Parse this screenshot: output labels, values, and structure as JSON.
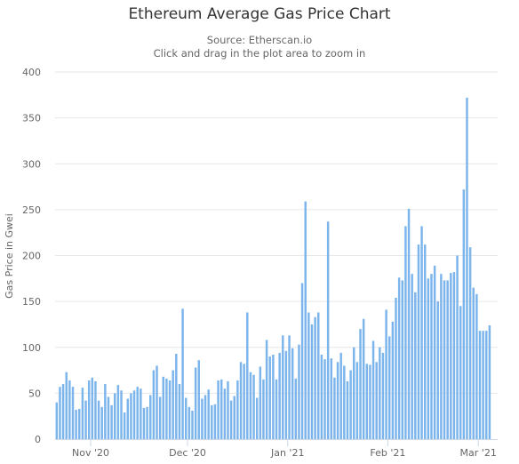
{
  "chart_data": {
    "type": "bar",
    "title": "Ethereum Average Gas Price Chart",
    "subtitle": "Source: Etherscan.io",
    "subtitle2": "Click and drag in the plot area to zoom in",
    "ylabel": "Gas Price in Gwei",
    "xlabel": "",
    "ylim": [
      0,
      400
    ],
    "yticks": [
      0,
      50,
      100,
      150,
      200,
      250,
      300,
      350,
      400
    ],
    "x_range": [
      "2020-10-21",
      "2021-03-06"
    ],
    "xticks": [
      {
        "label": "Nov '20",
        "date": "2020-11-01"
      },
      {
        "label": "Dec '20",
        "date": "2020-12-01"
      },
      {
        "label": "Jan '21",
        "date": "2021-01-01"
      },
      {
        "label": "Feb '21",
        "date": "2021-02-01"
      },
      {
        "label": "Mar '21",
        "date": "2021-03-01"
      }
    ],
    "grid": true,
    "bar_color": "#7cb5ec",
    "series": [
      {
        "start_date": "2020-10-21",
        "values": [
          40,
          57,
          60,
          73,
          64,
          57,
          32,
          33,
          56,
          42,
          64,
          67,
          63,
          42,
          35,
          60,
          46,
          37,
          50,
          59,
          53,
          29,
          44,
          50,
          53,
          57,
          55,
          34,
          35,
          48,
          75,
          80,
          46,
          68,
          66,
          64,
          75,
          93,
          60,
          142,
          45,
          35,
          31,
          78,
          86,
          44,
          48,
          54,
          37,
          38,
          64,
          65,
          55,
          63,
          42,
          47,
          64,
          84,
          82,
          138,
          73,
          70,
          45,
          79,
          65,
          108,
          90,
          92,
          65,
          94,
          113,
          96,
          113,
          99,
          66,
          103,
          170,
          259,
          138,
          125,
          133,
          138,
          92,
          87,
          237,
          88,
          67,
          84,
          94,
          80,
          63,
          75,
          100,
          84,
          120,
          131,
          82,
          81,
          107,
          84,
          100,
          94,
          141,
          112,
          128,
          154,
          176,
          173,
          232,
          251,
          180,
          160,
          212,
          232,
          212,
          175,
          180,
          189,
          150,
          180,
          173,
          173,
          181,
          182,
          200,
          145,
          272,
          372,
          209,
          165,
          158,
          118,
          118,
          118,
          124
        ]
      }
    ]
  }
}
